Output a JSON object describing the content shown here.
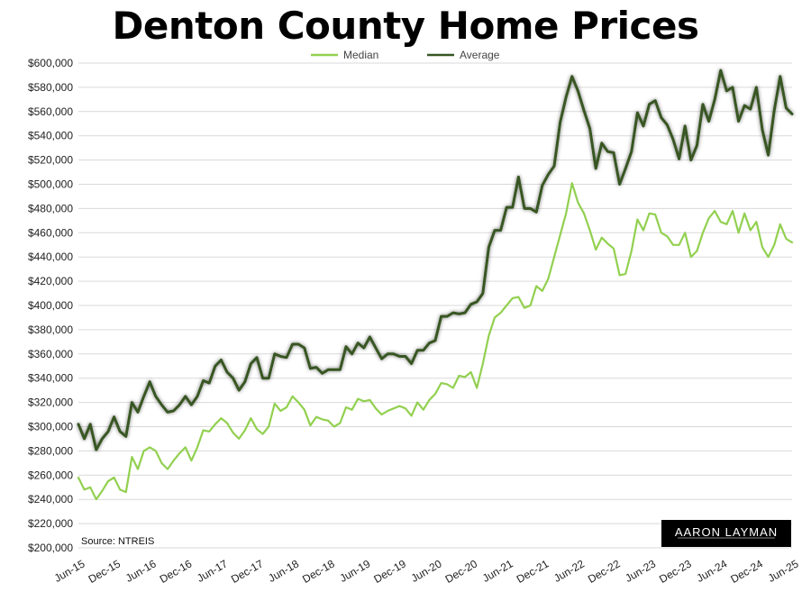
{
  "title": "Denton County Home Prices",
  "source": "Source: NTREIS",
  "logo": "AARON LAYMAN",
  "chart_data": {
    "type": "line",
    "title": "Denton County Home Prices",
    "xlabel": "",
    "ylabel": "",
    "ylim": [
      200000,
      600000
    ],
    "y_ticks": [
      200000,
      220000,
      240000,
      260000,
      280000,
      300000,
      320000,
      340000,
      360000,
      380000,
      400000,
      420000,
      440000,
      460000,
      480000,
      500000,
      520000,
      540000,
      560000,
      580000,
      600000
    ],
    "y_tick_labels": [
      "$200,000",
      "$220,000",
      "$240,000",
      "$260,000",
      "$280,000",
      "$300,000",
      "$320,000",
      "$340,000",
      "$360,000",
      "$380,000",
      "$400,000",
      "$420,000",
      "$440,000",
      "$460,000",
      "$480,000",
      "$500,000",
      "$520,000",
      "$540,000",
      "$560,000",
      "$580,000",
      "$600,000"
    ],
    "x_start": "Jun-15",
    "x_tick_labels": [
      "Jun-15",
      "Dec-15",
      "Jun-16",
      "Dec-16",
      "Jun-17",
      "Dec-17",
      "Jun-18",
      "Dec-18",
      "Jun-19",
      "Dec-19",
      "Jun-20",
      "Dec-20",
      "Jun-21",
      "Dec-21",
      "Jun-22",
      "Dec-22",
      "Jun-23",
      "Dec-23",
      "Jun-24",
      "Dec-24",
      "Jun-25"
    ],
    "grid": true,
    "legend": "top",
    "series": [
      {
        "name": "Median",
        "color": "#92d050",
        "values": [
          258000,
          248000,
          250000,
          240000,
          247000,
          255000,
          258000,
          248000,
          246000,
          275000,
          265000,
          280000,
          283000,
          280000,
          270000,
          265000,
          272000,
          278000,
          283000,
          272000,
          283000,
          297000,
          296000,
          302000,
          307000,
          303000,
          295000,
          290000,
          297000,
          307000,
          298000,
          294000,
          300000,
          319000,
          313000,
          316000,
          325000,
          320000,
          314000,
          301000,
          308000,
          306000,
          305000,
          300000,
          303000,
          316000,
          314000,
          323000,
          321000,
          322000,
          315000,
          310000,
          313000,
          315000,
          317000,
          315000,
          309000,
          320000,
          314000,
          322000,
          327000,
          336000,
          335000,
          332000,
          342000,
          341000,
          345000,
          332000,
          352000,
          375000,
          390000,
          394000,
          400000,
          406000,
          407000,
          398000,
          400000,
          416000,
          412000,
          422000,
          440000,
          458000,
          476000,
          501000,
          485000,
          476000,
          462000,
          446000,
          456000,
          451000,
          447000,
          425000,
          426000,
          445000,
          471000,
          462000,
          476000,
          475000,
          460000,
          457000,
          450000,
          450000,
          460000,
          440000,
          445000,
          460000,
          472000,
          478000,
          469000,
          467000,
          478000,
          460000,
          476000,
          462000,
          469000,
          448000,
          440000,
          450000,
          467000,
          455000,
          452000
        ]
      },
      {
        "name": "Average",
        "color": "#375623",
        "values": [
          302000,
          290000,
          302000,
          281000,
          290000,
          296000,
          308000,
          296000,
          292000,
          320000,
          312000,
          325000,
          337000,
          325000,
          318000,
          312000,
          313000,
          318000,
          325000,
          318000,
          325000,
          338000,
          336000,
          350000,
          355000,
          345000,
          340000,
          330000,
          337000,
          352000,
          357000,
          340000,
          340000,
          360000,
          358000,
          357000,
          368000,
          368000,
          365000,
          348000,
          349000,
          344000,
          347000,
          347000,
          347000,
          366000,
          360000,
          369000,
          365000,
          374000,
          365000,
          356000,
          360000,
          360000,
          358000,
          358000,
          352000,
          363000,
          363000,
          369000,
          371000,
          391000,
          391000,
          394000,
          393000,
          394000,
          401000,
          403000,
          410000,
          448000,
          462000,
          462000,
          481000,
          481000,
          506000,
          480000,
          480000,
          477000,
          499000,
          508000,
          515000,
          551000,
          572000,
          589000,
          577000,
          561000,
          546000,
          513000,
          534000,
          527000,
          526000,
          500000,
          513000,
          527000,
          559000,
          548000,
          566000,
          569000,
          555000,
          549000,
          537000,
          521000,
          548000,
          520000,
          532000,
          566000,
          552000,
          570000,
          594000,
          577000,
          580000,
          552000,
          565000,
          562000,
          580000,
          545000,
          524000,
          561000,
          589000,
          563000,
          558000
        ]
      }
    ]
  }
}
